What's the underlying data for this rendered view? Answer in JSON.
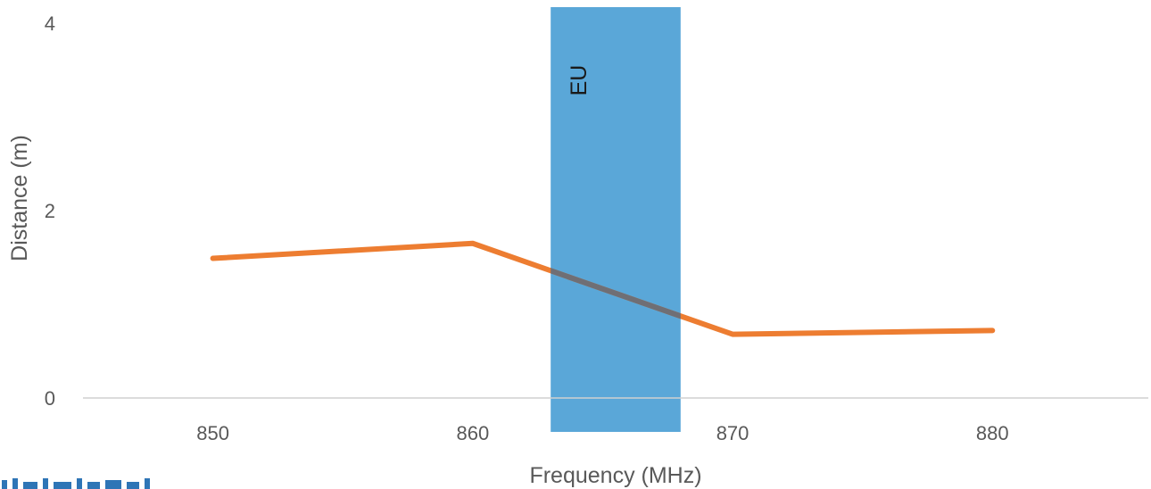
{
  "chart_data": {
    "type": "line",
    "xlabel": "Frequency (MHz)",
    "ylabel": "Distance (m)",
    "x": [
      850,
      860,
      870,
      880
    ],
    "series": [
      {
        "values": [
          1.49,
          1.65,
          0.68,
          0.72
        ],
        "color": "#ed7d31"
      }
    ],
    "xlim": [
      845,
      886
    ],
    "ylim": [
      0,
      4
    ],
    "x_ticks": [
      "850",
      "860",
      "870",
      "880"
    ],
    "y_ticks": [
      "0",
      "2",
      "4"
    ],
    "band": {
      "label": "EU",
      "x_start": 863,
      "x_end": 868,
      "color": "#5aa7d8"
    },
    "grid": false,
    "legend": "none"
  }
}
